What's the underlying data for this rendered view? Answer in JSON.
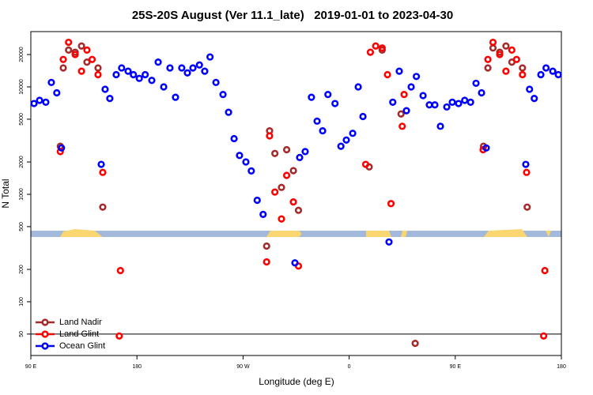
{
  "chart_data": {
    "type": "scatter",
    "title": "25S-20S August (Ver 11.1_late)   2019-01-01 to 2023-04-30",
    "x_label": "Longitude (deg E)",
    "y_label": "N Total",
    "log_y": true,
    "xlim": [
      90,
      540
    ],
    "ylim": [
      31.6,
      32700
    ],
    "xticks": [
      {
        "value": 90,
        "label": "90 E"
      },
      180,
      {
        "value": 270,
        "label": "90 W"
      },
      {
        "value": 360,
        "label": "0"
      },
      {
        "value": 450,
        "label": "90 E"
      },
      {
        "value": 540,
        "label": "180"
      }
    ],
    "yticks": [
      50,
      100,
      200,
      500,
      1000,
      2000,
      5000,
      10000,
      20000
    ],
    "reference_line": 50,
    "legend": "lower left",
    "series": [
      {
        "name": "Land Nadir",
        "color": "#a52a2a",
        "x": [
          115,
          117.5,
          122,
          127.6,
          133,
          137.6,
          147,
          151,
          290,
          292.5,
          297,
          302.6,
          307,
          312.7,
          317,
          377,
          388,
          404,
          416,
          474,
          477.7,
          482,
          487.7,
          493,
          498,
          507,
          511
        ],
        "values": [
          2800,
          15000,
          22000,
          21000,
          24000,
          17000,
          15000,
          760,
          330,
          3900,
          2400,
          1160,
          2600,
          1660,
          710,
          1800,
          22000,
          5600,
          41,
          2800,
          15000,
          23000,
          21000,
          24000,
          17000,
          15000,
          760
        ]
      },
      {
        "name": "Land Glint",
        "color": "#ff0000",
        "x": [
          115,
          117.5,
          122,
          127.6,
          133,
          137.6,
          142,
          147,
          151,
          166,
          165,
          290,
          292.5,
          297,
          302.6,
          307,
          312.7,
          317,
          374,
          378,
          382.5,
          388,
          392.5,
          395.5,
          405,
          406.6,
          473.6,
          477.7,
          482,
          487.7,
          493,
          498,
          502,
          507,
          510.5,
          526,
          525
        ],
        "values": [
          2500,
          18000,
          26000,
          20000,
          14000,
          22000,
          18000,
          13000,
          1600,
          195,
          48,
          235,
          3500,
          1050,
          590,
          1500,
          850,
          215,
          1900,
          21000,
          24000,
          23000,
          13000,
          820,
          4300,
          8500,
          2600,
          18000,
          26000,
          20000,
          14000,
          22000,
          18000,
          13000,
          1600,
          195,
          48
        ]
      },
      {
        "name": "Ocean Glint",
        "color": "#0000ff",
        "x": [
          92.7,
          97.4,
          102.7,
          107.4,
          112,
          116,
          149.7,
          153,
          157,
          162.4,
          167,
          172.5,
          177,
          182,
          187,
          192.6,
          198,
          202.7,
          208,
          212.7,
          218,
          222.8,
          227.5,
          233,
          237.5,
          242,
          247,
          253,
          257.7,
          262.4,
          267,
          272.4,
          277,
          282,
          287,
          314,
          318,
          322.7,
          328,
          332.8,
          337.5,
          342,
          348,
          353,
          357.6,
          363,
          367.7,
          371.7,
          393.8,
          397,
          402.5,
          408.6,
          412.6,
          417,
          422.7,
          428,
          432.7,
          437.4,
          442.8,
          447.5,
          452.8,
          458,
          463,
          467.6,
          472.3,
          476.3,
          509.8,
          513,
          517,
          522.6,
          527,
          532.7,
          537.4
        ],
        "values": [
          7000,
          7500,
          7200,
          11000,
          8800,
          2700,
          1900,
          9500,
          7800,
          13000,
          15000,
          14000,
          13000,
          12000,
          13000,
          11500,
          17000,
          10000,
          15000,
          8000,
          15000,
          13500,
          15000,
          16000,
          14000,
          19000,
          11000,
          8500,
          5800,
          3300,
          2300,
          2000,
          1650,
          880,
          650,
          230,
          2200,
          2500,
          8000,
          4800,
          3900,
          8500,
          7000,
          2800,
          3200,
          3700,
          10000,
          5300,
          360,
          7200,
          14000,
          6000,
          10000,
          12500,
          8300,
          6800,
          6800,
          4300,
          6500,
          7200,
          7000,
          7500,
          7200,
          10800,
          8800,
          2700,
          1900,
          9500,
          7800,
          13000,
          15000,
          14000,
          13000
        ]
      }
    ]
  }
}
